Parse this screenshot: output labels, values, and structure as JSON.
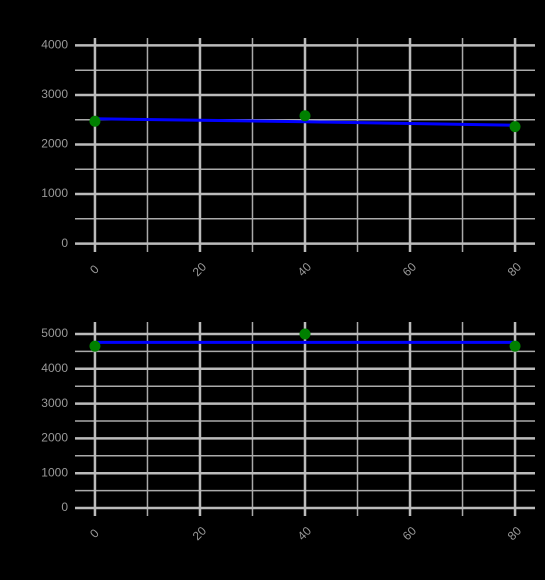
{
  "chart_data": [
    {
      "type": "scatter",
      "x": [
        0,
        40,
        80
      ],
      "series": [
        {
          "type": "line",
          "color": "#0000ff",
          "values": [
            2520,
            2460,
            2390
          ]
        },
        {
          "type": "scatter",
          "color": "#008000",
          "values": [
            2470,
            2580,
            2360
          ]
        }
      ],
      "xlim": [
        -3.8,
        83.8
      ],
      "xticks": [
        0,
        20,
        40,
        60,
        80
      ],
      "xminor": [
        10,
        30,
        50,
        70
      ],
      "ylim": [
        -170,
        4150
      ],
      "yticks": [
        0,
        1000,
        2000,
        3000,
        4000
      ],
      "yminor": [
        500,
        1500,
        2500,
        3500
      ],
      "grid": true
    },
    {
      "type": "scatter",
      "x": [
        0,
        40,
        80
      ],
      "series": [
        {
          "type": "line",
          "color": "#0000ff",
          "values": [
            4760,
            4760,
            4760
          ]
        },
        {
          "type": "scatter",
          "color": "#008000",
          "values": [
            4650,
            5000,
            4650
          ]
        }
      ],
      "xlim": [
        -3.8,
        83.8
      ],
      "xticks": [
        0,
        20,
        40,
        60,
        80
      ],
      "xminor": [
        10,
        30,
        50,
        70
      ],
      "ylim": [
        -230,
        5345
      ],
      "yticks": [
        0,
        1000,
        2000,
        3000,
        4000,
        5000
      ],
      "yminor": [
        500,
        1500,
        2500,
        3500,
        4500
      ],
      "grid": true
    }
  ]
}
